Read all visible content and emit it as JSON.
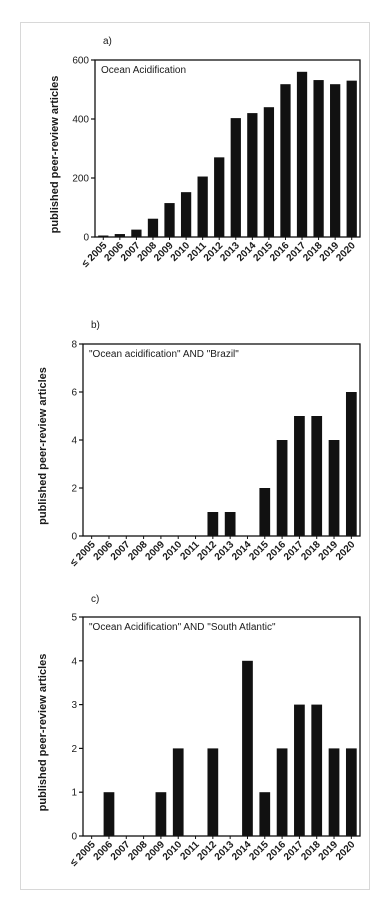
{
  "chart_data": [
    {
      "type": "bar",
      "panel": "a)",
      "title": "Ocean Acidification",
      "ylabel": "published peer-review articles",
      "ylim": [
        0,
        600
      ],
      "yticks": [
        "0",
        "200",
        "400",
        "600"
      ],
      "categories": [
        "≤ 2005",
        "2006",
        "2007",
        "2008",
        "2009",
        "2010",
        "2011",
        "2012",
        "2013",
        "2014",
        "2015",
        "2016",
        "2017",
        "2018",
        "2019",
        "2020"
      ],
      "values": [
        5,
        10,
        25,
        62,
        115,
        152,
        205,
        270,
        403,
        420,
        440,
        518,
        560,
        532,
        518,
        530
      ],
      "bar_color": "#111111"
    },
    {
      "type": "bar",
      "panel": "b)",
      "title": "\"Ocean acidification\" AND \"Brazil\"",
      "ylabel": "published peer-review articles",
      "ylim": [
        0,
        8
      ],
      "yticks": [
        "0",
        "2",
        "4",
        "6",
        "8"
      ],
      "categories": [
        "≤ 2005",
        "2006",
        "2007",
        "2008",
        "2009",
        "2010",
        "2011",
        "2012",
        "2013",
        "2014",
        "2015",
        "2016",
        "2017",
        "2018",
        "2019",
        "2020"
      ],
      "values": [
        0,
        0,
        0,
        0,
        0,
        0,
        0,
        1,
        1,
        0,
        2,
        4,
        5,
        5,
        4,
        6
      ],
      "bar_color": "#111111"
    },
    {
      "type": "bar",
      "panel": "c)",
      "title": "\"Ocean Acidification\" AND \"South Atlantic\"",
      "ylabel": "published peer-review articles",
      "ylim": [
        0,
        5
      ],
      "yticks": [
        "0",
        "1",
        "2",
        "3",
        "4",
        "5"
      ],
      "categories": [
        "≤ 2005",
        "2006",
        "2007",
        "2008",
        "2009",
        "2010",
        "2011",
        "2012",
        "2013",
        "2014",
        "2015",
        "2016",
        "2017",
        "2018",
        "2019",
        "2020"
      ],
      "values": [
        0,
        1,
        0,
        0,
        1,
        2,
        0,
        2,
        0,
        4,
        1,
        2,
        3,
        3,
        2,
        2
      ],
      "bar_color": "#111111"
    }
  ]
}
